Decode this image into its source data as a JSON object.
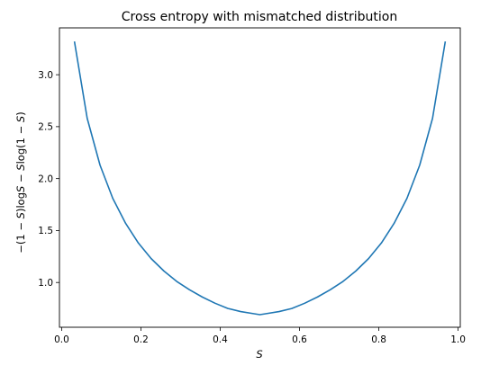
{
  "chart_data": {
    "type": "line",
    "title": "Cross entropy with mismatched distribution",
    "xlabel": "S",
    "ylabel_parts": [
      {
        "t": "−(1 − ",
        "i": false
      },
      {
        "t": "S",
        "i": true
      },
      {
        "t": ")log",
        "i": false
      },
      {
        "t": "S",
        "i": true
      },
      {
        "t": " − ",
        "i": false
      },
      {
        "t": "S",
        "i": true
      },
      {
        "t": "log(1 − ",
        "i": false
      },
      {
        "t": "S",
        "i": true
      },
      {
        "t": ")",
        "i": false
      }
    ],
    "xlim": [
      -0.0055,
      1.0055
    ],
    "ylim": [
      0.569,
      3.451
    ],
    "xticks": [
      0.0,
      0.2,
      0.4,
      0.6,
      0.8,
      1.0
    ],
    "xtick_labels": [
      "0.0",
      "0.2",
      "0.4",
      "0.6",
      "0.8",
      "1.0"
    ],
    "yticks": [
      1.0,
      1.5,
      2.0,
      2.5,
      3.0
    ],
    "ytick_labels": [
      "1.0",
      "1.5",
      "2.0",
      "2.5",
      "3.0"
    ],
    "grid": false,
    "color": "#1f77b4",
    "series": [
      {
        "x": [
          0.0323,
          0.0645,
          0.0968,
          0.129,
          0.1613,
          0.1935,
          0.2258,
          0.2581,
          0.2903,
          0.3226,
          0.3548,
          0.3871,
          0.4194,
          0.4516,
          0.4839,
          0.5,
          0.5161,
          0.5484,
          0.5806,
          0.6129,
          0.6452,
          0.6774,
          0.7097,
          0.7419,
          0.7742,
          0.8065,
          0.8387,
          0.871,
          0.9032,
          0.9355,
          0.9677
        ],
        "y": [
          3.32,
          2.58,
          2.13,
          1.81,
          1.57,
          1.38,
          1.23,
          1.11,
          1.01,
          0.93,
          0.86,
          0.8,
          0.75,
          0.72,
          0.7,
          0.69,
          0.7,
          0.72,
          0.75,
          0.8,
          0.86,
          0.93,
          1.01,
          1.11,
          1.23,
          1.38,
          1.57,
          1.81,
          2.13,
          2.58,
          3.32
        ]
      }
    ]
  }
}
